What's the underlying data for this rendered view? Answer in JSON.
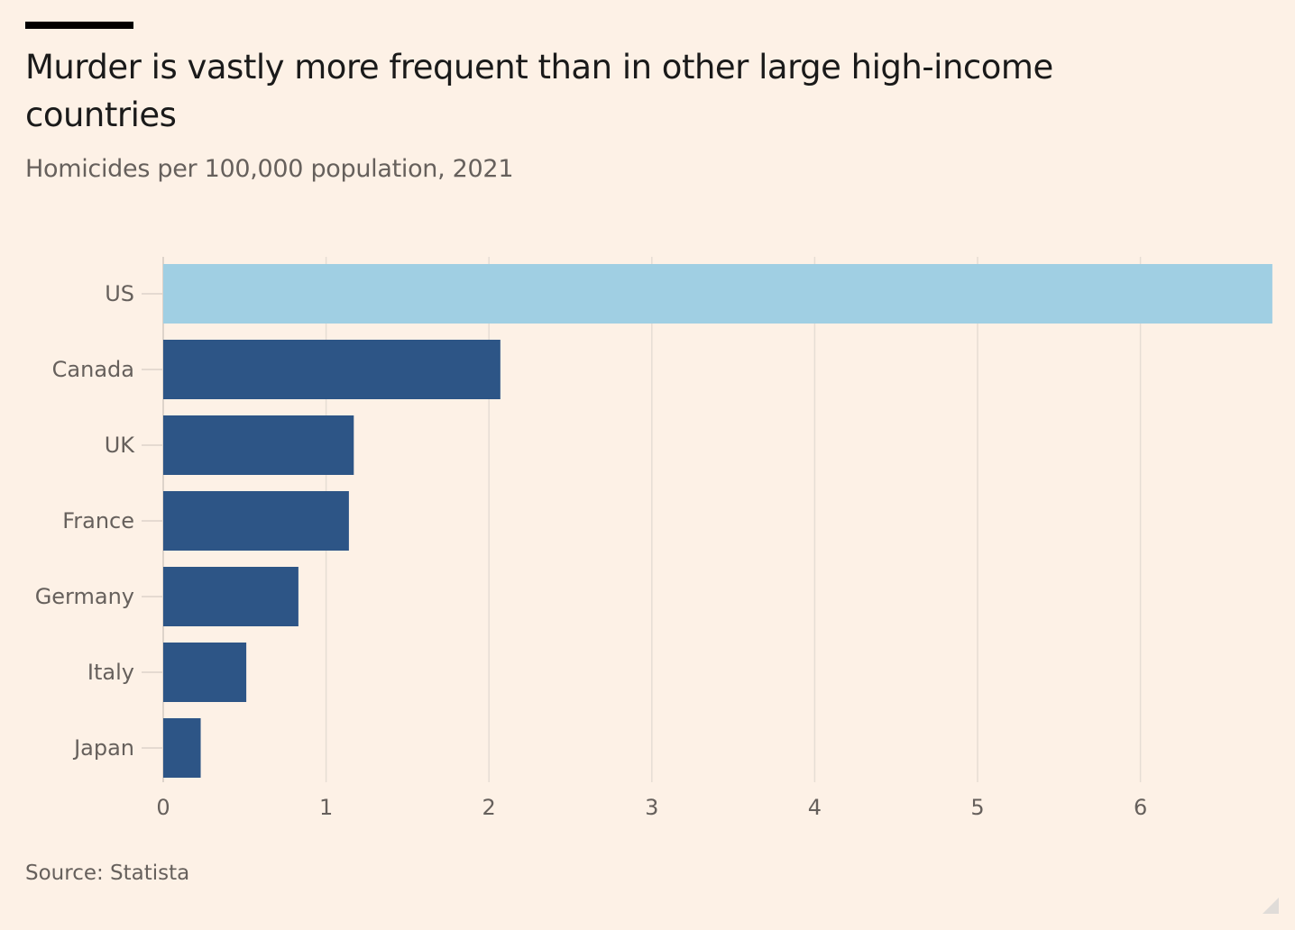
{
  "title": "Murder is vastly more frequent than in other large high-income countries",
  "subtitle": "Homicides per 100,000 population, 2021",
  "source": "Source: Statista",
  "colors": {
    "background": "#fdf1e6",
    "highlight_bar": "#a0cfe3",
    "bar": "#2d5586",
    "gridline": "#e6ddd4",
    "axis_text": "#66605c"
  },
  "chart_data": {
    "type": "bar",
    "orientation": "horizontal",
    "title": "Murder is vastly more frequent than in other large high-income countries",
    "subtitle": "Homicides per 100,000 population, 2021",
    "xlabel": "",
    "ylabel": "",
    "categories": [
      "US",
      "Canada",
      "UK",
      "France",
      "Germany",
      "Italy",
      "Japan"
    ],
    "values": [
      6.81,
      2.07,
      1.17,
      1.14,
      0.83,
      0.51,
      0.23
    ],
    "highlight": [
      "US"
    ],
    "xlim": [
      0,
      6.8
    ],
    "xticks": [
      0,
      1,
      2,
      3,
      4,
      5,
      6
    ],
    "grid": true,
    "legend": "none",
    "source": "Source: Statista"
  }
}
